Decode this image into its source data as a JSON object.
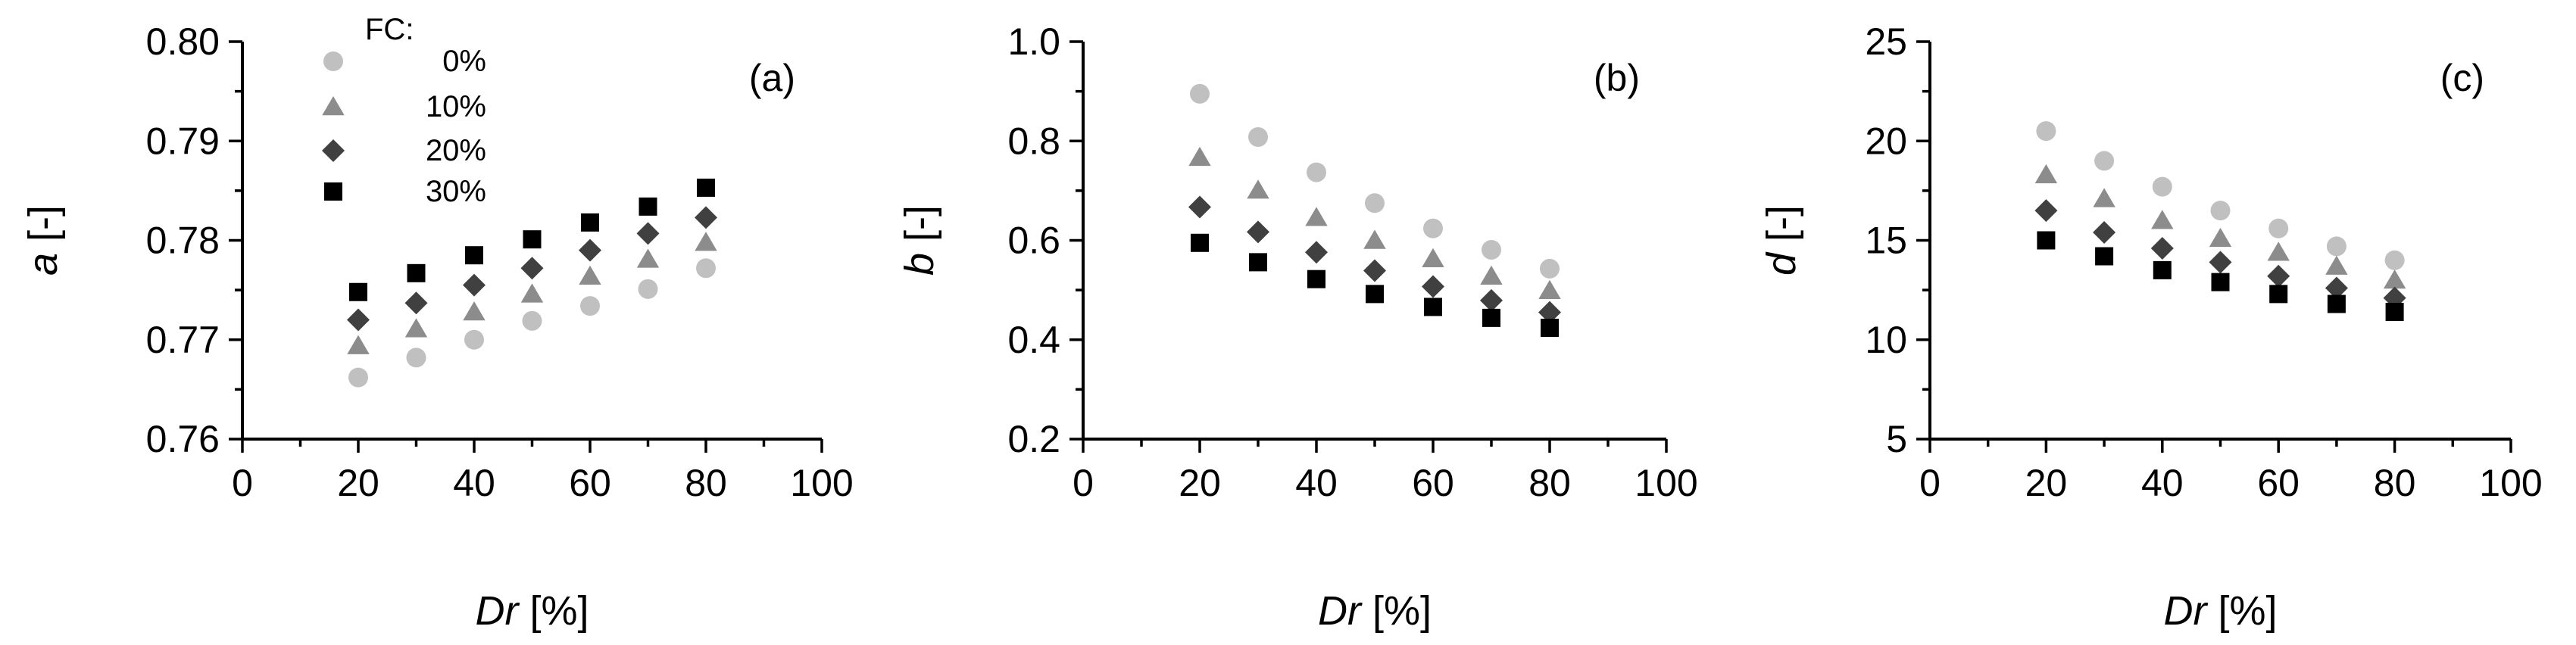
{
  "chart_data": [
    {
      "type": "scatter",
      "panel_label": "(a)",
      "ylabel_symbol": "a",
      "ylabel_unit": " [-]",
      "xlabel_symbol": "Dr",
      "xlabel_unit": " [%]",
      "xlim": [
        0,
        100
      ],
      "ylim": [
        0.76,
        0.8
      ],
      "xticks": [
        0,
        20,
        40,
        60,
        80,
        100
      ],
      "yticks": [
        0.76,
        0.77,
        0.78,
        0.79,
        0.8
      ],
      "ytick_labels": [
        "0.76",
        "0.77",
        "0.78",
        "0.79",
        "0.80"
      ],
      "grid": false,
      "legend": {
        "title": "FC:",
        "placement": "top-left",
        "entries": [
          "0%",
          "10%",
          "20%",
          "30%"
        ]
      },
      "x": [
        20,
        30,
        40,
        50,
        60,
        70,
        80
      ],
      "series": [
        {
          "name": "0%",
          "marker": "circle",
          "color": "#c0c0c0",
          "values": [
            0.7662,
            0.7682,
            0.77,
            0.7719,
            0.7734,
            0.7751,
            0.7772
          ]
        },
        {
          "name": "10%",
          "marker": "triangle",
          "color": "#8c8c8c",
          "values": [
            0.7694,
            0.7711,
            0.7728,
            0.7746,
            0.7764,
            0.7781,
            0.7798
          ]
        },
        {
          "name": "20%",
          "marker": "diamond",
          "color": "#404040",
          "values": [
            0.772,
            0.7737,
            0.7755,
            0.7772,
            0.779,
            0.7807,
            0.7823
          ]
        },
        {
          "name": "30%",
          "marker": "square",
          "color": "#000000",
          "values": [
            0.7748,
            0.7767,
            0.7785,
            0.7801,
            0.7818,
            0.7834,
            0.7853
          ]
        }
      ]
    },
    {
      "type": "scatter",
      "panel_label": "(b)",
      "ylabel_symbol": "b",
      "ylabel_unit": " [-]",
      "xlabel_symbol": "Dr",
      "xlabel_unit": " [%]",
      "xlim": [
        0,
        100
      ],
      "ylim": [
        0.2,
        1.0
      ],
      "xticks": [
        0,
        20,
        40,
        60,
        80,
        100
      ],
      "yticks": [
        0.2,
        0.4,
        0.6,
        0.8,
        1.0
      ],
      "ytick_labels": [
        "0.2",
        "0.4",
        "0.6",
        "0.8",
        "1.0"
      ],
      "grid": false,
      "x": [
        20,
        30,
        40,
        50,
        60,
        70,
        80
      ],
      "series": [
        {
          "name": "0%",
          "marker": "circle",
          "color": "#c0c0c0",
          "values": [
            0.895,
            0.808,
            0.737,
            0.675,
            0.624,
            0.581,
            0.543
          ]
        },
        {
          "name": "10%",
          "marker": "triangle",
          "color": "#8c8c8c",
          "values": [
            0.767,
            0.701,
            0.646,
            0.6,
            0.563,
            0.528,
            0.499
          ]
        },
        {
          "name": "20%",
          "marker": "diamond",
          "color": "#404040",
          "values": [
            0.667,
            0.617,
            0.576,
            0.539,
            0.507,
            0.479,
            0.455
          ]
        },
        {
          "name": "30%",
          "marker": "square",
          "color": "#000000",
          "values": [
            0.595,
            0.556,
            0.522,
            0.492,
            0.466,
            0.444,
            0.424
          ]
        }
      ]
    },
    {
      "type": "scatter",
      "panel_label": "(c)",
      "ylabel_symbol": "d",
      "ylabel_unit": " [-]",
      "xlabel_symbol": "Dr",
      "xlabel_unit": " [%]",
      "xlim": [
        0,
        100
      ],
      "ylim": [
        5,
        25
      ],
      "xticks": [
        0,
        20,
        40,
        60,
        80,
        100
      ],
      "yticks": [
        5,
        10,
        15,
        20,
        25
      ],
      "ytick_labels": [
        "5",
        "10",
        "15",
        "20",
        "25"
      ],
      "grid": false,
      "x": [
        20,
        30,
        40,
        50,
        60,
        70,
        80
      ],
      "series": [
        {
          "name": "0%",
          "marker": "circle",
          "color": "#c0c0c0",
          "values": [
            20.5,
            19.0,
            17.7,
            16.5,
            15.6,
            14.7,
            14.0
          ]
        },
        {
          "name": "10%",
          "marker": "triangle",
          "color": "#8c8c8c",
          "values": [
            18.3,
            17.1,
            16.0,
            15.1,
            14.4,
            13.7,
            13.0
          ]
        },
        {
          "name": "20%",
          "marker": "diamond",
          "color": "#404040",
          "values": [
            16.5,
            15.4,
            14.6,
            13.9,
            13.2,
            12.6,
            12.1
          ]
        },
        {
          "name": "30%",
          "marker": "square",
          "color": "#000000",
          "values": [
            15.0,
            14.2,
            13.5,
            12.9,
            12.3,
            11.8,
            11.4
          ]
        }
      ]
    }
  ]
}
